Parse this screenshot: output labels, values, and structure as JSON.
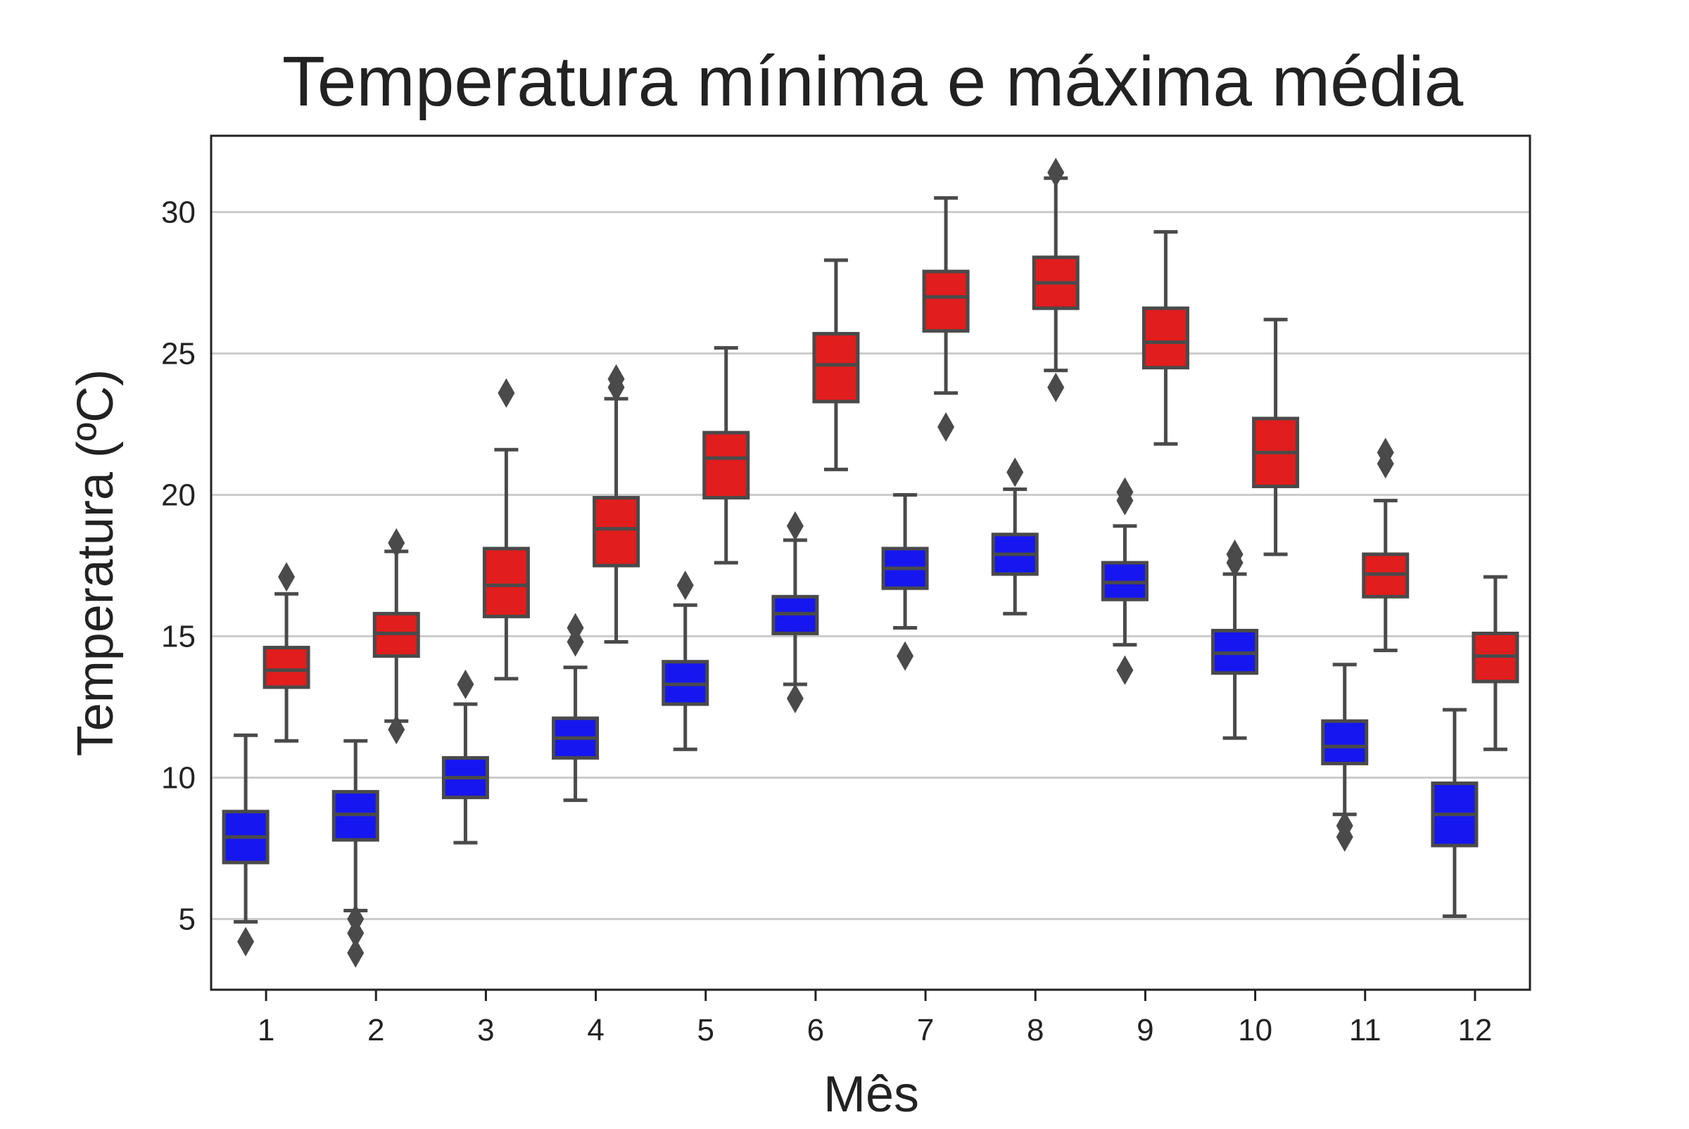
{
  "chart_data": {
    "type": "box",
    "title": "Temperatura mínima e máxima média",
    "xlabel": "Mês",
    "ylabel": "Temperatura (ºC)",
    "categories": [
      "1",
      "2",
      "3",
      "4",
      "5",
      "6",
      "7",
      "8",
      "9",
      "10",
      "11",
      "12"
    ],
    "y_ticks": [
      5,
      10,
      15,
      20,
      25,
      30
    ],
    "ylim": [
      2.5,
      32.7
    ],
    "grid": "horizontal",
    "colors": {
      "min": "#1616f0",
      "max": "#e21d1d",
      "edge": "#4a4a4a",
      "grid": "#cccccc"
    },
    "series": [
      {
        "key": "min",
        "boxes": [
          {
            "whislo": 4.9,
            "q1": 7.0,
            "med": 7.9,
            "q3": 8.8,
            "whishi": 11.5,
            "fliers": [
              4.2
            ]
          },
          {
            "whislo": 5.3,
            "q1": 7.8,
            "med": 8.7,
            "q3": 9.5,
            "whishi": 11.3,
            "fliers": [
              5.0,
              4.5,
              3.8
            ]
          },
          {
            "whislo": 7.7,
            "q1": 9.3,
            "med": 10.0,
            "q3": 10.7,
            "whishi": 12.6,
            "fliers": [
              13.3
            ]
          },
          {
            "whislo": 9.2,
            "q1": 10.7,
            "med": 11.4,
            "q3": 12.1,
            "whishi": 13.9,
            "fliers": [
              14.8,
              15.3
            ]
          },
          {
            "whislo": 11.0,
            "q1": 12.6,
            "med": 13.3,
            "q3": 14.1,
            "whishi": 16.1,
            "fliers": [
              16.8
            ]
          },
          {
            "whislo": 13.3,
            "q1": 15.1,
            "med": 15.8,
            "q3": 16.4,
            "whishi": 18.4,
            "fliers": [
              18.9,
              12.8
            ]
          },
          {
            "whislo": 15.3,
            "q1": 16.7,
            "med": 17.4,
            "q3": 18.1,
            "whishi": 20.0,
            "fliers": [
              14.3
            ]
          },
          {
            "whislo": 15.8,
            "q1": 17.2,
            "med": 17.9,
            "q3": 18.6,
            "whishi": 20.2,
            "fliers": [
              20.8
            ]
          },
          {
            "whislo": 14.7,
            "q1": 16.3,
            "med": 16.9,
            "q3": 17.6,
            "whishi": 18.9,
            "fliers": [
              19.8,
              20.1,
              13.8
            ]
          },
          {
            "whislo": 11.4,
            "q1": 13.7,
            "med": 14.4,
            "q3": 15.2,
            "whishi": 17.2,
            "fliers": [
              17.6,
              17.9
            ]
          },
          {
            "whislo": 8.7,
            "q1": 10.5,
            "med": 11.1,
            "q3": 12.0,
            "whishi": 14.0,
            "fliers": [
              8.3,
              7.9
            ]
          },
          {
            "whislo": 5.1,
            "q1": 7.6,
            "med": 8.7,
            "q3": 9.8,
            "whishi": 12.4,
            "fliers": []
          }
        ]
      },
      {
        "key": "max",
        "boxes": [
          {
            "whislo": 11.3,
            "q1": 13.2,
            "med": 13.8,
            "q3": 14.6,
            "whishi": 16.5,
            "fliers": [
              17.1
            ]
          },
          {
            "whislo": 12.0,
            "q1": 14.3,
            "med": 15.1,
            "q3": 15.8,
            "whishi": 18.0,
            "fliers": [
              18.3,
              11.7
            ]
          },
          {
            "whislo": 13.5,
            "q1": 15.7,
            "med": 16.8,
            "q3": 18.1,
            "whishi": 21.6,
            "fliers": [
              23.6
            ]
          },
          {
            "whislo": 14.8,
            "q1": 17.5,
            "med": 18.8,
            "q3": 19.9,
            "whishi": 23.4,
            "fliers": [
              23.8,
              24.1
            ]
          },
          {
            "whislo": 17.6,
            "q1": 19.9,
            "med": 21.3,
            "q3": 22.2,
            "whishi": 25.2,
            "fliers": []
          },
          {
            "whislo": 20.9,
            "q1": 23.3,
            "med": 24.6,
            "q3": 25.7,
            "whishi": 28.3,
            "fliers": []
          },
          {
            "whislo": 23.6,
            "q1": 25.8,
            "med": 27.0,
            "q3": 27.9,
            "whishi": 30.5,
            "fliers": [
              22.4
            ]
          },
          {
            "whislo": 24.4,
            "q1": 26.6,
            "med": 27.5,
            "q3": 28.4,
            "whishi": 31.2,
            "fliers": [
              31.4,
              23.8
            ]
          },
          {
            "whislo": 21.8,
            "q1": 24.5,
            "med": 25.4,
            "q3": 26.6,
            "whishi": 29.3,
            "fliers": []
          },
          {
            "whislo": 17.9,
            "q1": 20.3,
            "med": 21.5,
            "q3": 22.7,
            "whishi": 26.2,
            "fliers": []
          },
          {
            "whislo": 14.5,
            "q1": 16.4,
            "med": 17.2,
            "q3": 17.9,
            "whishi": 19.8,
            "fliers": [
              21.1,
              21.5
            ]
          },
          {
            "whislo": 11.0,
            "q1": 13.4,
            "med": 14.3,
            "q3": 15.1,
            "whishi": 17.1,
            "fliers": []
          }
        ]
      }
    ]
  }
}
